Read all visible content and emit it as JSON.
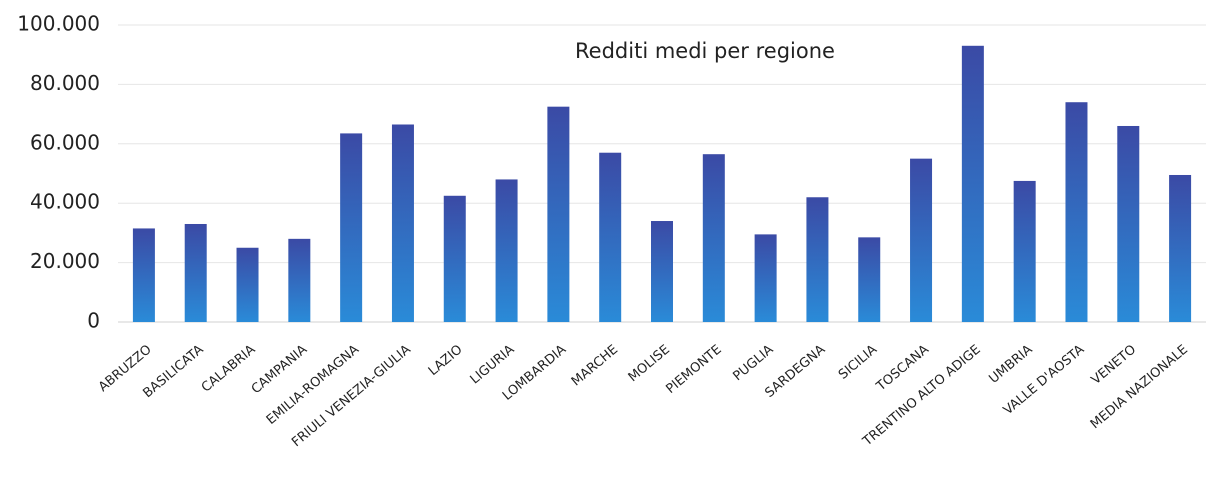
{
  "chart_data": {
    "type": "bar",
    "title": "Redditi medi per regione",
    "categories": [
      "ABRUZZO",
      "BASILICATA",
      "CALABRIA",
      "CAMPANIA",
      "EMILIA-ROMAGNA",
      "FRIULI VENEZIA-GIULIA",
      "LAZIO",
      "LIGURIA",
      "LOMBARDIA",
      "MARCHE",
      "MOLISE",
      "PIEMONTE",
      "PUGLIA",
      "SARDEGNA",
      "SICILIA",
      "TOSCANA",
      "TRENTINO ALTO ADIGE",
      "UMBRIA",
      "VALLE D'AOSTA",
      "VENETO",
      "MEDIA NAZIONALE"
    ],
    "values": [
      31500,
      33000,
      25000,
      28000,
      63500,
      66500,
      42500,
      48000,
      72500,
      57000,
      34000,
      56500,
      29500,
      42000,
      28500,
      55000,
      93000,
      47500,
      74000,
      66000,
      49500
    ],
    "colors": [
      "#3b4aa5",
      "#2a8bd8"
    ],
    "ylim": [
      0,
      100000
    ],
    "yticks": [
      0,
      {
        "value": 20000,
        "label": "20.000"
      },
      {
        "value": 40000,
        "label": "40.000"
      },
      {
        "value": 60000,
        "label": "60.000"
      },
      {
        "value": 80000,
        "label": "80.000"
      },
      {
        "value": 100000,
        "label": "100.000"
      }
    ],
    "grid": true
  }
}
